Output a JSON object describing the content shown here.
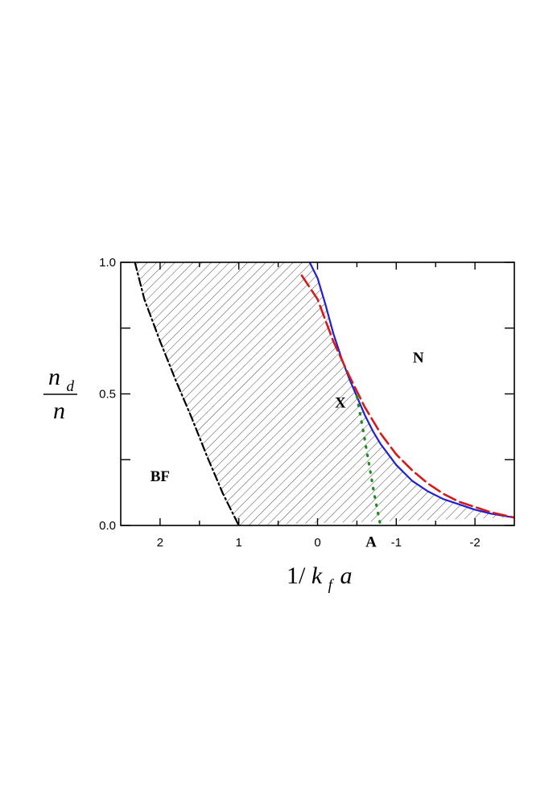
{
  "chart_data": {
    "type": "line",
    "xlabel": {
      "prefix": "1/",
      "var": "k",
      "sub": "f",
      "suffix": "a"
    },
    "ylabel": {
      "num": "n",
      "num_sub": "d",
      "den": "n"
    },
    "xlim": [
      2.5,
      -2.5
    ],
    "ylim": [
      0.0,
      1.0
    ],
    "x_ticks": [
      {
        "value": 2,
        "label": "2"
      },
      {
        "value": 1,
        "label": "1"
      },
      {
        "value": 0,
        "label": "0"
      },
      {
        "value": -1,
        "label": "-1"
      },
      {
        "value": -2,
        "label": "-2"
      }
    ],
    "y_ticks": [
      {
        "value": 0.0,
        "label": "0.0"
      },
      {
        "value": 0.5,
        "label": "0.5"
      },
      {
        "value": 1.0,
        "label": "1.0"
      }
    ],
    "grid": false,
    "series": [
      {
        "style": "dash-dot",
        "color": "#000000",
        "x": [
          2.32,
          2.2,
          2.0,
          1.8,
          1.6,
          1.4,
          1.2,
          1.0
        ],
        "y": [
          1.0,
          0.86,
          0.7,
          0.55,
          0.41,
          0.26,
          0.12,
          0.0
        ]
      },
      {
        "style": "solid",
        "color": "#1f1fd6",
        "x": [
          0.1,
          0.0,
          -0.1,
          -0.2,
          -0.3,
          -0.4,
          -0.5,
          -0.6,
          -0.7,
          -0.8,
          -0.9,
          -1.0,
          -1.2,
          -1.4,
          -1.6,
          -1.8,
          -2.0,
          -2.2,
          -2.5
        ],
        "y": [
          1.0,
          0.94,
          0.84,
          0.73,
          0.64,
          0.56,
          0.49,
          0.42,
          0.36,
          0.31,
          0.27,
          0.23,
          0.17,
          0.13,
          0.1,
          0.08,
          0.06,
          0.045,
          0.03
        ]
      },
      {
        "style": "dashed",
        "color": "#d61a1a",
        "x": [
          0.2,
          0.0,
          -0.2,
          -0.4,
          -0.6,
          -0.8,
          -1.0,
          -1.2,
          -1.4,
          -1.6,
          -1.8,
          -2.0,
          -2.2,
          -2.5
        ],
        "y": [
          0.95,
          0.86,
          0.7,
          0.57,
          0.45,
          0.35,
          0.27,
          0.21,
          0.16,
          0.12,
          0.09,
          0.07,
          0.05,
          0.03
        ]
      },
      {
        "style": "dotted",
        "color": "#1e8c1e",
        "x": [
          -0.5,
          -0.58,
          -0.65,
          -0.72,
          -0.8
        ],
        "y": [
          0.49,
          0.36,
          0.24,
          0.12,
          0.0
        ]
      }
    ],
    "shaded_region": {
      "pattern": "hatch",
      "between": "dash-dot and solid"
    },
    "annotations": [
      {
        "text": "N",
        "x": -1.28,
        "y": 0.64
      },
      {
        "text": "X",
        "x": -0.29,
        "y": 0.47
      },
      {
        "text": "BF",
        "x": 2.0,
        "y": 0.19
      },
      {
        "text": "A",
        "x": -0.68,
        "y": -0.06
      }
    ]
  }
}
